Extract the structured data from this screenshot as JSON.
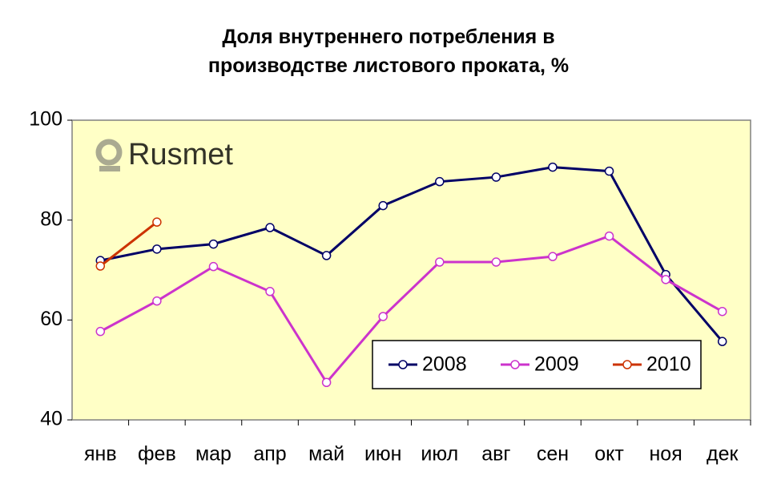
{
  "chart_data": {
    "type": "line",
    "title": "Доля внутреннего потребления в производстве листового проката, %",
    "watermark": "Rusmet",
    "categories": [
      "янв",
      "фев",
      "мар",
      "апр",
      "май",
      "июн",
      "июл",
      "авг",
      "сен",
      "окт",
      "ноя",
      "дек"
    ],
    "series": [
      {
        "name": "2008",
        "color": "#000066",
        "values": [
          71.9,
          74.2,
          75.2,
          78.5,
          72.9,
          82.9,
          87.7,
          88.6,
          90.6,
          89.8,
          69.1,
          55.7
        ]
      },
      {
        "name": "2009",
        "color": "#cc33cc",
        "values": [
          57.7,
          63.8,
          70.7,
          65.7,
          47.5,
          60.7,
          71.6,
          71.6,
          72.7,
          76.8,
          68.1,
          61.7
        ]
      },
      {
        "name": "2010",
        "color": "#cc3300",
        "values": [
          70.8,
          79.6,
          null,
          null,
          null,
          null,
          null,
          null,
          null,
          null,
          null,
          null
        ]
      }
    ],
    "ylim": [
      40,
      100
    ],
    "yticks": [
      40,
      60,
      80,
      100
    ],
    "grid": false,
    "legend": "lower right"
  }
}
